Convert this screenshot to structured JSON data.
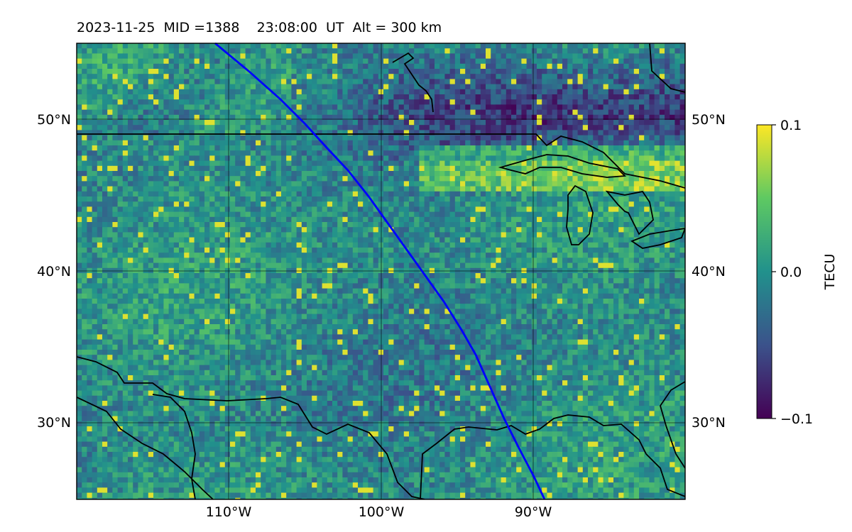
{
  "title": "2023-11-25  MID =1388    23:08:00  UT  Alt = 300 km",
  "map": {
    "lat_labels": [
      "50°N",
      "40°N",
      "30°N"
    ],
    "lon_labels": [
      "110°W",
      "100°W",
      "90°W"
    ],
    "gridlines": true,
    "track_color": "#0000ff",
    "coastline_color": "#000000"
  },
  "colorbar": {
    "label": "TECU",
    "ticks": [
      "0.1",
      "0.0",
      "−0.1"
    ],
    "colormap": "viridis",
    "colors": [
      "#440154",
      "#3b528b",
      "#21918c",
      "#5ec962",
      "#fde725"
    ]
  }
}
